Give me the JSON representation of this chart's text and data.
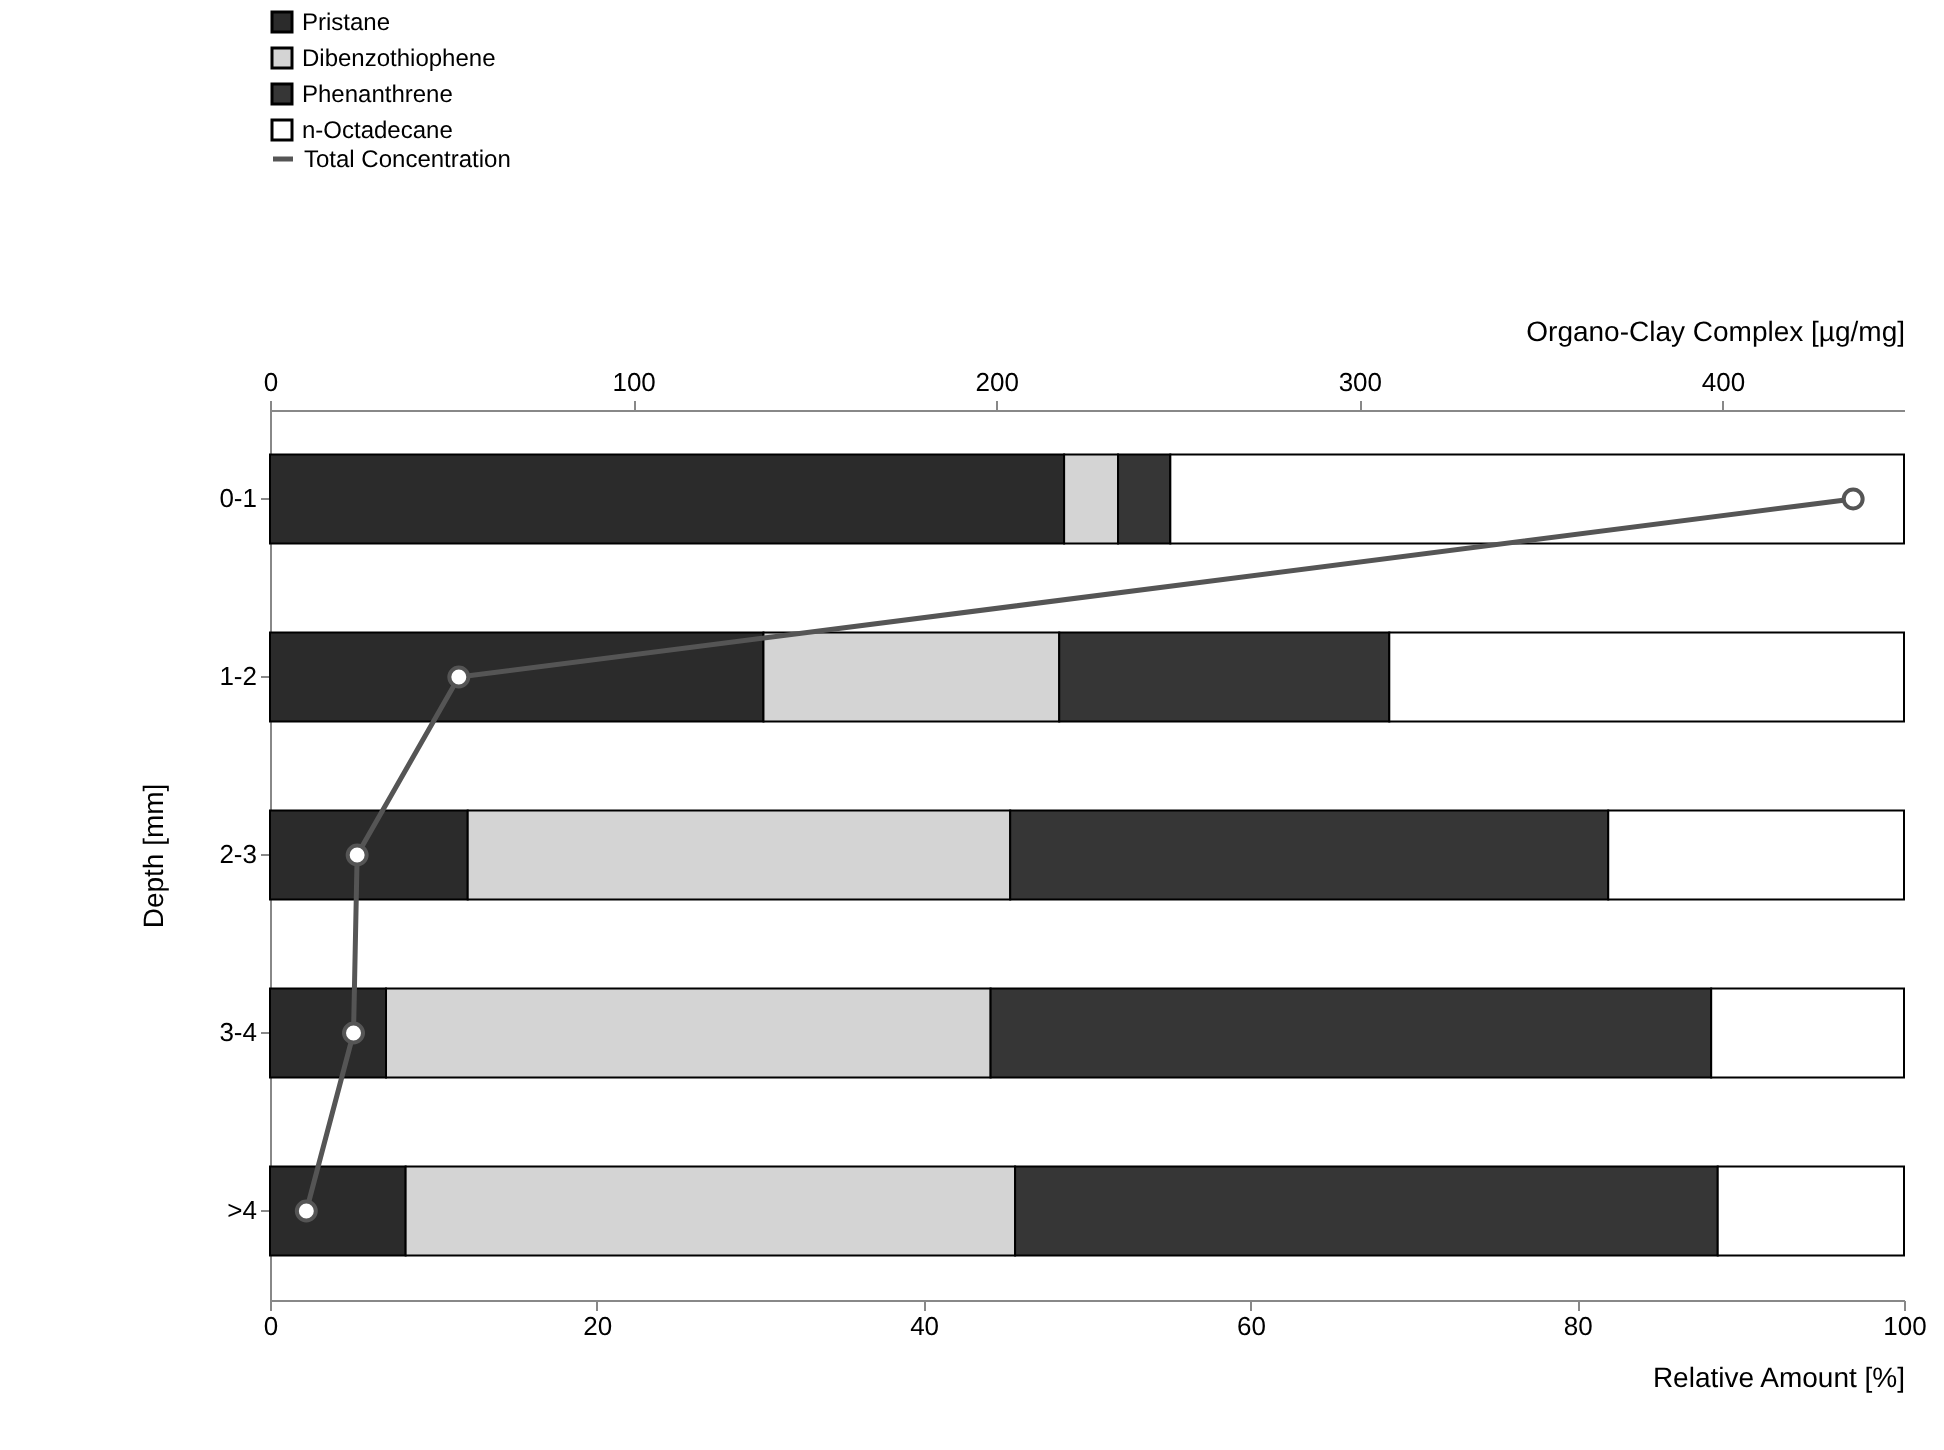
{
  "chart_data": {
    "type": "bar",
    "orientation": "horizontal",
    "stacked": true,
    "ylabel": "Depth [mm]",
    "xlabel": "Relative Amount [%]",
    "x2label": "Organo-Clay Complex [µg/mg]",
    "categories": [
      "0-1",
      "1-2",
      "2-3",
      "3-4",
      ">4"
    ],
    "series": [
      {
        "name": "Pristane",
        "color": "#2b2b2b",
        "values": [
          48.6,
          30.2,
          12.1,
          7.1,
          8.3
        ]
      },
      {
        "name": "Dibenzothiophene",
        "color": "#d4d4d4",
        "values": [
          3.3,
          18.1,
          33.2,
          37.0,
          37.3
        ]
      },
      {
        "name": "Phenanthrene",
        "color": "#363636",
        "values": [
          3.2,
          20.2,
          36.6,
          44.1,
          43.0
        ]
      },
      {
        "name": "n-Octadecane",
        "color": "#ffffff",
        "values": [
          44.9,
          31.5,
          18.1,
          11.8,
          11.4
        ]
      },
      {
        "name": "Total Concentration",
        "type": "line",
        "axis": "x2",
        "color": "#555555",
        "marker": "circle",
        "values": [
          436,
          52,
          24,
          23,
          10
        ]
      }
    ],
    "xlim": [
      0,
      100
    ],
    "xticks": [
      0,
      20,
      40,
      60,
      80,
      100
    ],
    "x2lim": [
      0,
      450
    ],
    "x2ticks": [
      0,
      100,
      200,
      300,
      400
    ],
    "grid": false,
    "legend": "top left"
  }
}
